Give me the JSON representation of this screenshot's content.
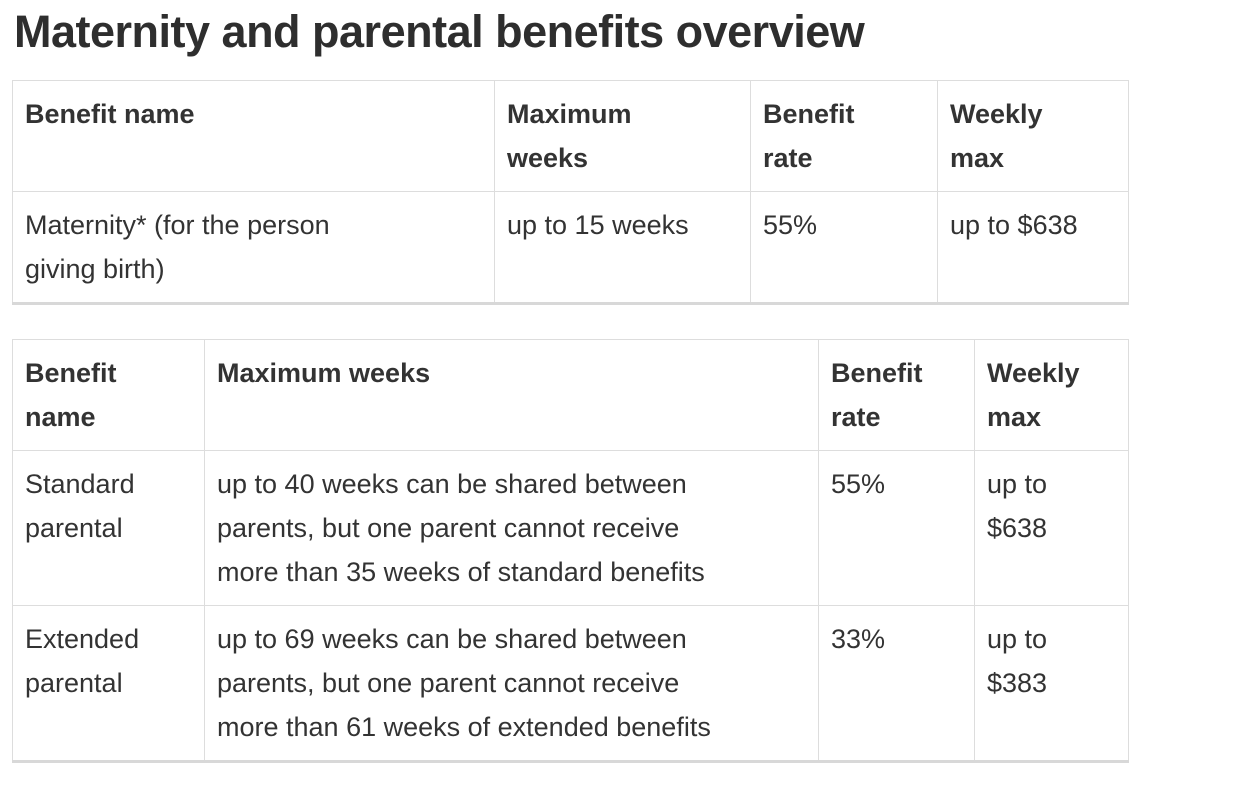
{
  "page": {
    "title": "Maternity and parental benefits overview"
  },
  "tables": [
    {
      "name": "maternity-benefits",
      "headers": [
        "Benefit name",
        "Maximum weeks",
        "Benefit rate",
        "Weekly max"
      ],
      "rows": [
        [
          "Maternity* (for the person giving birth)",
          "up to 15 weeks",
          "55%",
          "up to $638"
        ]
      ]
    },
    {
      "name": "parental-benefits",
      "headers": [
        "Benefit name",
        "Maximum weeks",
        "Benefit rate",
        "Weekly max"
      ],
      "rows": [
        [
          "Standard parental",
          "up to 40 weeks can be shared between parents, but one parent cannot receive more than 35 weeks of standard benefits",
          "55%",
          "up to $638"
        ],
        [
          "Extended parental",
          "up to 69 weeks can be shared between parents, but one parent cannot receive more than 61 weeks of extended benefits",
          "33%",
          "up to $383"
        ]
      ]
    }
  ],
  "colors": {
    "text": "#333333",
    "heading": "#2e2e2e",
    "table_border": "#dddddd",
    "table_bottom_border": "#d8d8d8",
    "background": "#ffffff"
  }
}
